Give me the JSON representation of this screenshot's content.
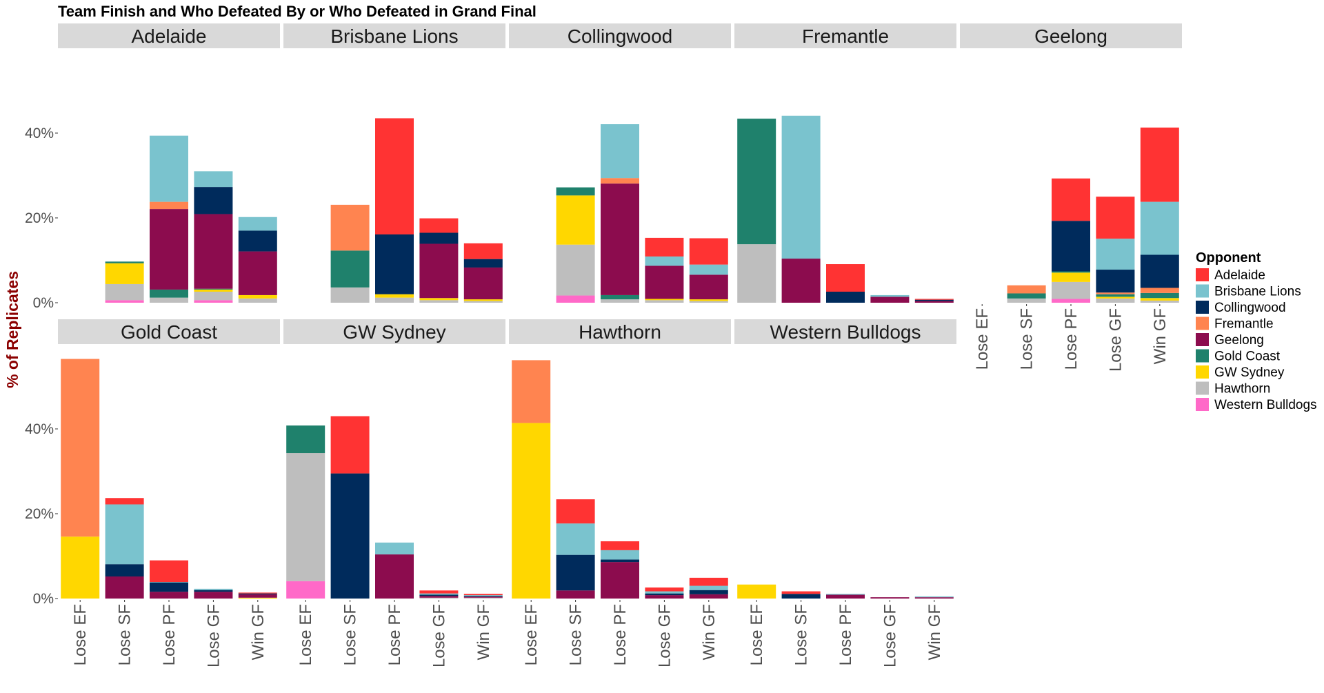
{
  "chart_data": {
    "type": "bar",
    "stacked": true,
    "title": "Team Finish and Who Defeated By or Who Defeated in Grand Final",
    "ylabel": "% of Replicates",
    "xlabel": "",
    "ylim": [
      0,
      60
    ],
    "yticks": [
      0,
      20,
      40
    ],
    "ytick_labels": [
      "0%",
      "20%",
      "40%"
    ],
    "categories": [
      "Lose EF",
      "Lose SF",
      "Lose PF",
      "Lose GF",
      "Win GF"
    ],
    "legend": {
      "title": "Opponent",
      "position": "right",
      "entries": [
        "Adelaide",
        "Brisbane Lions",
        "Collingwood",
        "Fremantle",
        "Geelong",
        "Gold Coast",
        "GW Sydney",
        "Hawthorn",
        "Western Bulldogs"
      ]
    },
    "colors": {
      "Adelaide": "#FF3333",
      "Brisbane Lions": "#7AC3CE",
      "Collingwood": "#002B5C",
      "Fremantle": "#FF8450",
      "Geelong": "#8C0C4E",
      "Gold Coast": "#1F816C",
      "GW Sydney": "#FFD700",
      "Hawthorn": "#BEBEBE",
      "Western Bulldogs": "#FF69C8"
    },
    "stack_order": [
      "Western Bulldogs",
      "Hawthorn",
      "GW Sydney",
      "Gold Coast",
      "Geelong",
      "Fremantle",
      "Collingwood",
      "Brisbane Lions",
      "Adelaide"
    ],
    "grid": false,
    "panels": [
      {
        "team": "Adelaide",
        "bars": [
          {
            "category": "Lose EF",
            "segments": {}
          },
          {
            "category": "Lose SF",
            "segments": {
              "Western Bulldogs": 0.6,
              "Hawthorn": 3.8,
              "GW Sydney": 4.9,
              "Gold Coast": 0.4
            }
          },
          {
            "category": "Lose PF",
            "segments": {
              "Hawthorn": 1.2,
              "Gold Coast": 1.9,
              "Geelong": 19.0,
              "Fremantle": 1.7,
              "Brisbane Lions": 15.6
            }
          },
          {
            "category": "Lose GF",
            "segments": {
              "Western Bulldogs": 0.6,
              "Hawthorn": 2.0,
              "GW Sydney": 0.5,
              "Gold Coast": 0.2,
              "Geelong": 17.6,
              "Collingwood": 6.4,
              "Brisbane Lions": 3.7
            }
          },
          {
            "category": "Win GF",
            "segments": {
              "Hawthorn": 1.0,
              "GW Sydney": 0.8,
              "Geelong": 10.3,
              "Collingwood": 4.9,
              "Brisbane Lions": 3.2
            }
          }
        ]
      },
      {
        "team": "Brisbane Lions",
        "bars": [
          {
            "category": "Lose EF",
            "segments": {}
          },
          {
            "category": "Lose SF",
            "segments": {
              "Hawthorn": 3.6,
              "Gold Coast": 8.7,
              "Fremantle": 10.8
            }
          },
          {
            "category": "Lose PF",
            "segments": {
              "Hawthorn": 1.2,
              "GW Sydney": 0.8,
              "Collingwood": 14.1,
              "Adelaide": 27.4
            }
          },
          {
            "category": "Lose GF",
            "segments": {
              "Hawthorn": 0.6,
              "GW Sydney": 0.5,
              "Geelong": 12.8,
              "Collingwood": 2.6,
              "Adelaide": 3.4
            }
          },
          {
            "category": "Win GF",
            "segments": {
              "Hawthorn": 0.4,
              "GW Sydney": 0.4,
              "Geelong": 7.5,
              "Collingwood": 2.0,
              "Adelaide": 3.7
            }
          }
        ]
      },
      {
        "team": "Collingwood",
        "bars": [
          {
            "category": "Lose EF",
            "segments": {}
          },
          {
            "category": "Lose SF",
            "segments": {
              "Western Bulldogs": 1.7,
              "Hawthorn": 12.0,
              "GW Sydney": 11.6,
              "Gold Coast": 1.9
            }
          },
          {
            "category": "Lose PF",
            "segments": {
              "Hawthorn": 0.8,
              "Gold Coast": 1.0,
              "Geelong": 26.3,
              "Fremantle": 1.3,
              "Brisbane Lions": 12.7
            }
          },
          {
            "category": "Lose GF",
            "segments": {
              "Hawthorn": 0.6,
              "GW Sydney": 0.3,
              "Geelong": 7.8,
              "Brisbane Lions": 2.2,
              "Adelaide": 4.4
            }
          },
          {
            "category": "Win GF",
            "segments": {
              "Hawthorn": 0.4,
              "GW Sydney": 0.4,
              "Geelong": 5.8,
              "Brisbane Lions": 2.4,
              "Adelaide": 6.2
            }
          }
        ]
      },
      {
        "team": "Fremantle",
        "bars": [
          {
            "category": "Lose EF",
            "segments": {
              "Hawthorn": 13.8,
              "Gold Coast": 29.6
            }
          },
          {
            "category": "Lose SF",
            "segments": {
              "Geelong": 10.4,
              "Brisbane Lions": 33.7
            }
          },
          {
            "category": "Lose PF",
            "segments": {
              "Collingwood": 2.6,
              "Adelaide": 6.5
            }
          },
          {
            "category": "Lose GF",
            "segments": {
              "Geelong": 1.4,
              "Brisbane Lions": 0.4
            }
          },
          {
            "category": "Win GF",
            "segments": {
              "Geelong": 0.4,
              "Collingwood": 0.3,
              "Adelaide": 0.2
            }
          }
        ]
      },
      {
        "team": "Geelong",
        "bars": [
          {
            "category": "Lose EF",
            "segments": {}
          },
          {
            "category": "Lose SF",
            "segments": {
              "Hawthorn": 1.0,
              "Gold Coast": 1.2,
              "Fremantle": 1.9
            }
          },
          {
            "category": "Lose PF",
            "segments": {
              "Western Bulldogs": 0.9,
              "Hawthorn": 4.0,
              "GW Sydney": 2.2,
              "Gold Coast": 0.3,
              "Collingwood": 11.9,
              "Adelaide": 10.0
            }
          },
          {
            "category": "Lose GF",
            "segments": {
              "Hawthorn": 1.0,
              "GW Sydney": 0.4,
              "Gold Coast": 0.6,
              "Fremantle": 0.4,
              "Collingwood": 5.4,
              "Brisbane Lions": 7.3,
              "Adelaide": 9.9
            }
          },
          {
            "category": "Win GF",
            "segments": {
              "Hawthorn": 0.5,
              "GW Sydney": 0.6,
              "Gold Coast": 1.2,
              "Fremantle": 1.2,
              "Collingwood": 7.8,
              "Brisbane Lions": 12.5,
              "Adelaide": 17.5
            }
          }
        ]
      },
      {
        "team": "Gold Coast",
        "bars": [
          {
            "category": "Lose EF",
            "segments": {
              "GW Sydney": 14.6,
              "Fremantle": 41.9
            }
          },
          {
            "category": "Lose SF",
            "segments": {
              "Geelong": 5.2,
              "Collingwood": 2.9,
              "Brisbane Lions": 14.1,
              "Adelaide": 1.5
            }
          },
          {
            "category": "Lose PF",
            "segments": {
              "Geelong": 1.6,
              "Collingwood": 2.2,
              "Brisbane Lions": 0.1,
              "Adelaide": 5.1
            }
          },
          {
            "category": "Lose GF",
            "segments": {
              "Geelong": 1.6,
              "Collingwood": 0.4,
              "Brisbane Lions": 0.3
            }
          },
          {
            "category": "Win GF",
            "segments": {
              "GW Sydney": 0.2,
              "Geelong": 0.8,
              "Collingwood": 0.2,
              "Adelaide": 0.2
            }
          }
        ]
      },
      {
        "team": "GW Sydney",
        "bars": [
          {
            "category": "Lose EF",
            "segments": {
              "Western Bulldogs": 4.1,
              "Hawthorn": 30.2,
              "Gold Coast": 6.5
            }
          },
          {
            "category": "Lose SF",
            "segments": {
              "Collingwood": 29.5,
              "Adelaide": 13.5
            }
          },
          {
            "category": "Lose PF",
            "segments": {
              "Geelong": 10.4,
              "Brisbane Lions": 2.8
            }
          },
          {
            "category": "Lose GF",
            "segments": {
              "Hawthorn": 0.2,
              "Geelong": 0.4,
              "Collingwood": 0.3,
              "Brisbane Lions": 0.3,
              "Adelaide": 0.7
            }
          },
          {
            "category": "Win GF",
            "segments": {
              "Hawthorn": 0.2,
              "Geelong": 0.2,
              "Collingwood": 0.2,
              "Brisbane Lions": 0.2,
              "Adelaide": 0.3
            }
          }
        ]
      },
      {
        "team": "Hawthorn",
        "bars": [
          {
            "category": "Lose EF",
            "segments": {
              "GW Sydney": 41.4,
              "Fremantle": 14.8
            }
          },
          {
            "category": "Lose SF",
            "segments": {
              "Geelong": 1.9,
              "Collingwood": 8.4,
              "Brisbane Lions": 7.4,
              "Adelaide": 5.7
            }
          },
          {
            "category": "Lose PF",
            "segments": {
              "Geelong": 8.6,
              "Collingwood": 0.6,
              "Brisbane Lions": 2.2,
              "Adelaide": 2.1
            }
          },
          {
            "category": "Lose GF",
            "segments": {
              "Geelong": 0.8,
              "Collingwood": 0.4,
              "Brisbane Lions": 0.5,
              "Adelaide": 0.9
            }
          },
          {
            "category": "Win GF",
            "segments": {
              "Geelong": 1.0,
              "Collingwood": 1.0,
              "Brisbane Lions": 1.0,
              "Adelaide": 1.9
            }
          }
        ]
      },
      {
        "team": "Western Bulldogs",
        "bars": [
          {
            "category": "Lose EF",
            "segments": {
              "GW Sydney": 3.3
            }
          },
          {
            "category": "Lose SF",
            "segments": {
              "Collingwood": 1.1,
              "Adelaide": 0.6
            }
          },
          {
            "category": "Lose PF",
            "segments": {
              "Geelong": 0.9,
              "Brisbane Lions": 0.2
            }
          },
          {
            "category": "Lose GF",
            "segments": {
              "Geelong": 0.3
            }
          },
          {
            "category": "Win GF",
            "segments": {
              "Geelong": 0.3,
              "Brisbane Lions": 0.2
            }
          }
        ]
      }
    ]
  }
}
